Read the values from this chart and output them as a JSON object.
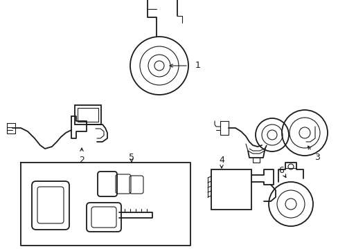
{
  "background_color": "#ffffff",
  "line_color": "#1a1a1a",
  "lw_thick": 1.3,
  "lw_thin": 0.8,
  "fig_width": 4.89,
  "fig_height": 3.6,
  "dpi": 100
}
